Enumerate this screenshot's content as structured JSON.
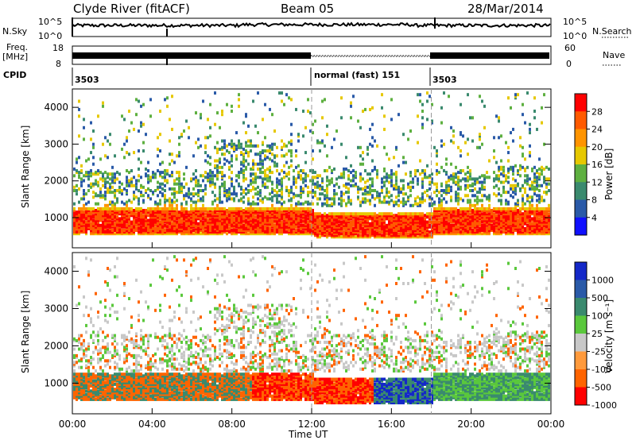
{
  "header": {
    "station": "Clyde River (fitACF)",
    "beam": "Beam 05",
    "date": "28/Mar/2014"
  },
  "strip_panels": {
    "nsky_label": "N.Sky",
    "nsky_ticks": [
      "10^5",
      "10^0"
    ],
    "nsearch_label": "N.Search",
    "nsearch_ticks": [
      "10^5",
      "10^0"
    ],
    "freq_label": "Freq.",
    "freq_unit": "[MHz]",
    "freq_ticks": [
      "18",
      "8"
    ],
    "nave_label": "Nave",
    "nave_ticks": [
      "60",
      "0"
    ],
    "cpid_label": "CPID",
    "cpid_segments": [
      {
        "start": 0,
        "end": 12,
        "text": "3503"
      },
      {
        "start": 12,
        "end": 18,
        "text": "normal (fast) 151"
      },
      {
        "start": 18,
        "end": 24,
        "text": "3503"
      }
    ]
  },
  "chart_data": [
    {
      "type": "heatmap",
      "title": "",
      "xlabel": "Time UT",
      "ylabel": "Slant Range [km]",
      "xlim": [
        0,
        24
      ],
      "ylim": [
        180,
        4500
      ],
      "x_ticks": [
        "00:00",
        "04:00",
        "08:00",
        "12:00",
        "16:00",
        "20:00",
        "00:00"
      ],
      "y_ticks": [
        1000,
        2000,
        3000,
        4000
      ],
      "colorbar": {
        "label": "Power [dB]",
        "ticks": [
          "28",
          "24",
          "20",
          "16",
          "12",
          "8",
          "4"
        ],
        "colors": [
          "#ff0000",
          "#ff5a00",
          "#ff9400",
          "#e6c800",
          "#5eb040",
          "#3a8a6e",
          "#2a5aa8",
          "#1010ff"
        ]
      }
    },
    {
      "type": "heatmap",
      "title": "",
      "xlabel": "Time UT",
      "ylabel": "Slant Range [km]",
      "xlim": [
        0,
        24
      ],
      "ylim": [
        180,
        4500
      ],
      "x_ticks": [
        "00:00",
        "04:00",
        "08:00",
        "12:00",
        "16:00",
        "20:00",
        "00:00"
      ],
      "y_ticks": [
        1000,
        2000,
        3000,
        4000
      ],
      "colorbar": {
        "label": "Velocity [m s⁻¹]",
        "ticks": [
          "1000",
          "500",
          "100",
          "25",
          "-25",
          "-100",
          "-500",
          "-1000"
        ],
        "colors": [
          "#1428c8",
          "#2a5aa8",
          "#3a8a6e",
          "#5ac83c",
          "#c8c8c8",
          "#ff9a3c",
          "#ff6400",
          "#ff0000"
        ]
      }
    }
  ]
}
